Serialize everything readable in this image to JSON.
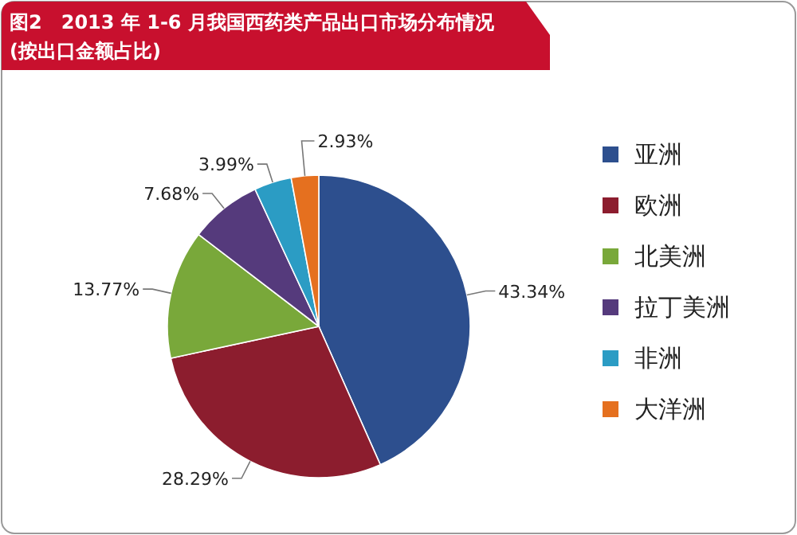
{
  "chart_data": {
    "type": "pie",
    "title": "图2　2013 年 1-6 月我国西药类产品出口市场分布情况",
    "subtitle": "(按出口金额占比)",
    "categories": [
      "亚洲",
      "欧洲",
      "北美洲",
      "拉丁美洲",
      "非洲",
      "大洋洲"
    ],
    "values": [
      43.34,
      28.29,
      13.77,
      7.68,
      3.99,
      2.93
    ],
    "value_labels": [
      "43.34%",
      "28.29%",
      "13.77%",
      "7.68%",
      "3.99%",
      "2.93%"
    ],
    "colors": [
      "#2d4f8e",
      "#8c1d2e",
      "#79a83a",
      "#553a7c",
      "#2b9cc4",
      "#e5701f"
    ],
    "legend": "right"
  }
}
